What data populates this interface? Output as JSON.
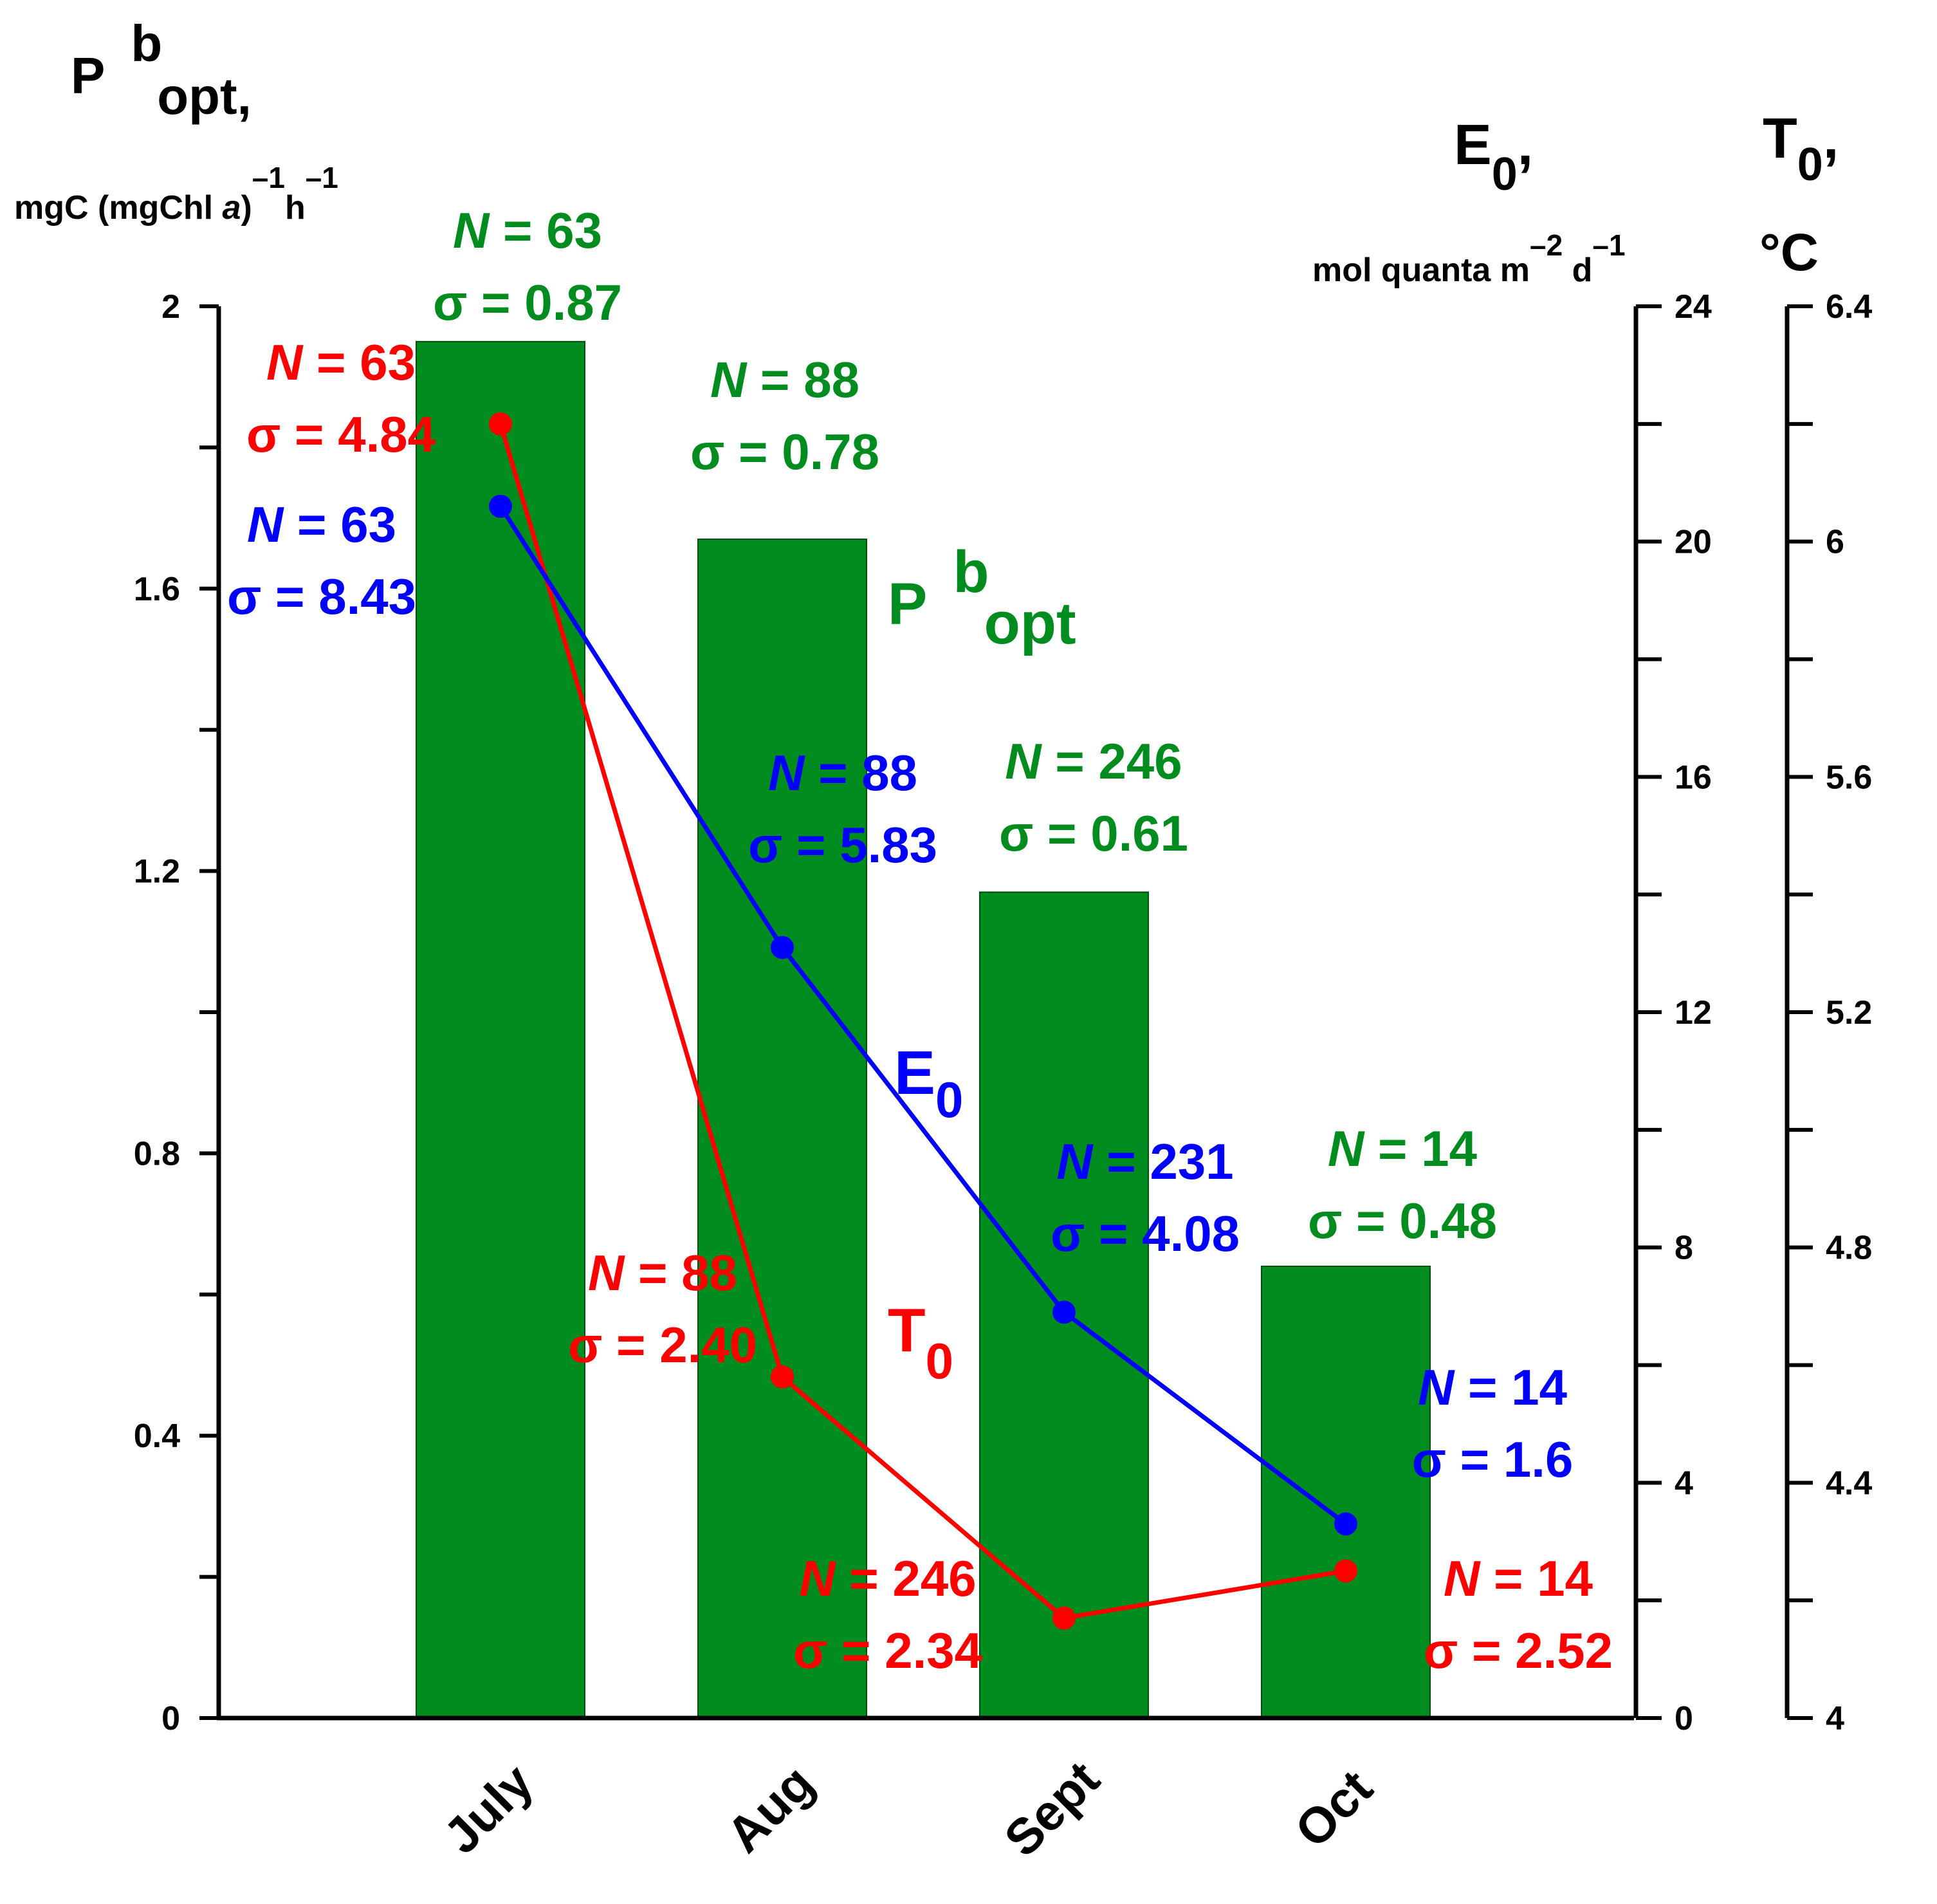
{
  "chart_data": {
    "type": "bar",
    "categories": [
      "July",
      "Aug",
      "Sept",
      "Oct"
    ],
    "left_axis": {
      "title_main": "P",
      "title_sup": "b",
      "title_sub": "opt,",
      "unit_text": "mgC (mgChl ",
      "unit_italic": "a",
      "unit_close": ")",
      "unit_sup1": "–1",
      "unit_h": "h",
      "unit_sup2": "–1",
      "ylim": [
        0,
        2
      ],
      "major_ticks": [
        0,
        0.4,
        0.8,
        1.2,
        1.6,
        2
      ],
      "tick_labels": [
        "0",
        "0.4",
        "0.8",
        "1.2",
        "1.6",
        "2"
      ]
    },
    "e0_axis": {
      "title_main": "E",
      "title_sub": "0",
      "title_comma": ",",
      "unit_text": "mol quanta m",
      "unit_sup1": "–2",
      "unit_d": " d",
      "unit_sup2": "–1",
      "ylim": [
        0,
        24
      ],
      "major_ticks": [
        0,
        4,
        8,
        12,
        16,
        20,
        24
      ],
      "tick_labels": [
        "0",
        "4",
        "8",
        "12",
        "16",
        "20",
        "24"
      ]
    },
    "t0_axis": {
      "title_main": "T",
      "title_sub": "0",
      "title_comma": ",",
      "unit_text": "°C",
      "ylim": [
        4,
        6.4
      ],
      "major_ticks": [
        4,
        4.4,
        4.8,
        5.2,
        5.6,
        6,
        6.4
      ],
      "tick_labels": [
        "4",
        "4.4",
        "4.8",
        "5.2",
        "5.6",
        "6",
        "6.4"
      ]
    },
    "series": [
      {
        "name": "P b opt",
        "kind": "bar",
        "axis": "left",
        "color": "#008C1E",
        "values": [
          1.95,
          1.67,
          1.17,
          0.64
        ],
        "label_main": "P",
        "label_sup": "b",
        "label_sub": "opt",
        "annotations": [
          {
            "n": "63",
            "sigma": "0.87"
          },
          {
            "n": "88",
            "sigma": "0.78"
          },
          {
            "n": "246",
            "sigma": "0.61"
          },
          {
            "n": "14",
            "sigma": "0.48"
          }
        ]
      },
      {
        "name": "E0",
        "kind": "line",
        "axis": "e0",
        "color": "#0000FF",
        "values": [
          20.6,
          13.1,
          6.9,
          3.3
        ],
        "label_main": "E",
        "label_sub": "0",
        "annotations": [
          {
            "n": "63",
            "sigma": "8.43"
          },
          {
            "n": "88",
            "sigma": "5.83"
          },
          {
            "n": "231",
            "sigma": "4.08"
          },
          {
            "n": "14",
            "sigma": "1.6"
          }
        ]
      },
      {
        "name": "T0",
        "kind": "line",
        "axis": "t0",
        "color": "#FF0000",
        "values": [
          6.2,
          4.58,
          4.17,
          4.25
        ],
        "label_main": "T",
        "label_sub": "0",
        "annotations": [
          {
            "n": "63",
            "sigma": "4.84"
          },
          {
            "n": "88",
            "sigma": "2.40"
          },
          {
            "n": "246",
            "sigma": "2.34"
          },
          {
            "n": "14",
            "sigma": "2.52"
          }
        ]
      }
    ],
    "annotation_n_prefix": "N",
    "annotation_n_sep": " = ",
    "annotation_sigma_prefix": "σ = "
  }
}
